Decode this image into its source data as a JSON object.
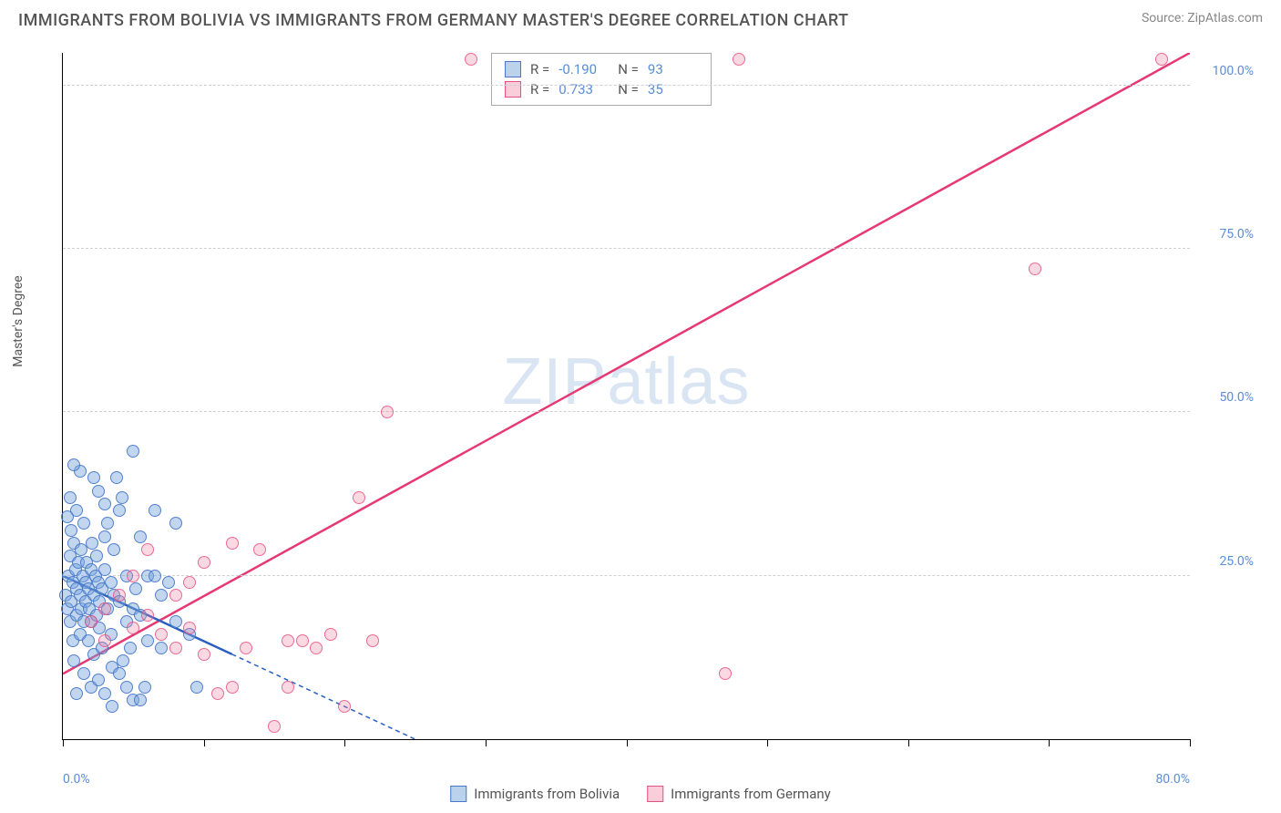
{
  "title": "IMMIGRANTS FROM BOLIVIA VS IMMIGRANTS FROM GERMANY MASTER'S DEGREE CORRELATION CHART",
  "source": "Source: ZipAtlas.com",
  "watermark": "ZIPatlas",
  "y_axis_label": "Master's Degree",
  "chart": {
    "type": "scatter",
    "xlim": [
      0,
      80
    ],
    "ylim": [
      0,
      105
    ],
    "x_tick_labels": {
      "0": "0.0%",
      "80": "80.0%"
    },
    "x_ticks": [
      0,
      10,
      20,
      30,
      40,
      50,
      60,
      70,
      80
    ],
    "y_tick_labels": {
      "25": "25.0%",
      "50": "50.0%",
      "75": "75.0%",
      "100": "100.0%"
    },
    "grid_color": "#d0d0d0",
    "background_color": "#ffffff",
    "marker_size": 14
  },
  "series": {
    "blue": {
      "label": "Immigrants from Bolivia",
      "fill": "rgba(120,165,220,0.45)",
      "stroke": "#4a78c8",
      "r_value": "-0.190",
      "n_value": "93",
      "trend": {
        "x1": 0,
        "y1": 25,
        "x2": 25,
        "y2": 0,
        "solid_until_x": 12,
        "color": "#2a5fc0"
      },
      "points": [
        [
          0.2,
          22
        ],
        [
          0.3,
          20
        ],
        [
          0.4,
          25
        ],
        [
          0.5,
          18
        ],
        [
          0.5,
          28
        ],
        [
          0.6,
          21
        ],
        [
          0.7,
          24
        ],
        [
          0.7,
          15
        ],
        [
          0.8,
          30
        ],
        [
          0.8,
          12
        ],
        [
          0.9,
          26
        ],
        [
          1.0,
          23
        ],
        [
          1.0,
          19
        ],
        [
          1.1,
          27
        ],
        [
          1.2,
          22
        ],
        [
          1.2,
          16
        ],
        [
          1.3,
          29
        ],
        [
          1.3,
          20
        ],
        [
          1.4,
          25
        ],
        [
          1.5,
          18
        ],
        [
          1.5,
          33
        ],
        [
          1.6,
          24
        ],
        [
          1.6,
          21
        ],
        [
          1.7,
          27
        ],
        [
          1.8,
          15
        ],
        [
          1.8,
          23
        ],
        [
          1.9,
          20
        ],
        [
          2.0,
          26
        ],
        [
          2.0,
          18
        ],
        [
          2.1,
          30
        ],
        [
          2.2,
          22
        ],
        [
          2.2,
          13
        ],
        [
          2.3,
          25
        ],
        [
          2.4,
          19
        ],
        [
          2.4,
          28
        ],
        [
          2.5,
          24
        ],
        [
          2.6,
          21
        ],
        [
          2.6,
          17
        ],
        [
          2.8,
          23
        ],
        [
          2.8,
          14
        ],
        [
          3.0,
          26
        ],
        [
          3.0,
          36
        ],
        [
          3.2,
          20
        ],
        [
          3.2,
          33
        ],
        [
          3.4,
          24
        ],
        [
          3.4,
          16
        ],
        [
          3.6,
          22
        ],
        [
          3.6,
          29
        ],
        [
          3.8,
          40
        ],
        [
          4.0,
          21
        ],
        [
          4.0,
          35
        ],
        [
          4.2,
          37
        ],
        [
          4.5,
          25
        ],
        [
          4.5,
          18
        ],
        [
          5.0,
          44
        ],
        [
          5.0,
          20
        ],
        [
          5.2,
          23
        ],
        [
          5.5,
          19
        ],
        [
          5.5,
          31
        ],
        [
          6.0,
          15
        ],
        [
          6.0,
          25
        ],
        [
          6.5,
          35
        ],
        [
          7.0,
          22
        ],
        [
          7.0,
          14
        ],
        [
          7.5,
          24
        ],
        [
          8.0,
          18
        ],
        [
          8.0,
          33
        ],
        [
          9.0,
          16
        ],
        [
          3.5,
          11
        ],
        [
          4.0,
          10
        ],
        [
          4.5,
          8
        ],
        [
          5.0,
          6
        ],
        [
          2.0,
          8
        ],
        [
          2.5,
          9
        ],
        [
          3.0,
          7
        ],
        [
          3.5,
          5
        ],
        [
          1.0,
          7
        ],
        [
          1.5,
          10
        ],
        [
          0.5,
          37
        ],
        [
          1.0,
          35
        ],
        [
          0.3,
          34
        ],
        [
          0.6,
          32
        ],
        [
          2.5,
          38
        ],
        [
          3.0,
          31
        ],
        [
          2.2,
          40
        ],
        [
          1.2,
          41
        ],
        [
          0.8,
          42
        ],
        [
          6.5,
          25
        ],
        [
          5.5,
          6
        ],
        [
          5.8,
          8
        ],
        [
          4.3,
          12
        ],
        [
          4.8,
          14
        ],
        [
          9.5,
          8
        ]
      ]
    },
    "pink": {
      "label": "Immigrants from Germany",
      "fill": "rgba(240,130,160,0.3)",
      "stroke": "#e65082",
      "r_value": "0.733",
      "n_value": "35",
      "trend": {
        "x1": 0,
        "y1": 10,
        "x2": 80,
        "y2": 105,
        "color": "#e63872"
      },
      "points": [
        [
          2,
          18
        ],
        [
          3,
          20
        ],
        [
          3,
          15
        ],
        [
          4,
          22
        ],
        [
          5,
          17
        ],
        [
          5,
          25
        ],
        [
          6,
          19
        ],
        [
          6,
          29
        ],
        [
          7,
          16
        ],
        [
          8,
          22
        ],
        [
          8,
          14
        ],
        [
          9,
          24
        ],
        [
          9,
          17
        ],
        [
          10,
          13
        ],
        [
          10,
          27
        ],
        [
          11,
          7
        ],
        [
          12,
          8
        ],
        [
          12,
          30
        ],
        [
          13,
          14
        ],
        [
          14,
          29
        ],
        [
          15,
          2
        ],
        [
          16,
          8
        ],
        [
          17,
          15
        ],
        [
          18,
          14
        ],
        [
          19,
          16
        ],
        [
          20,
          5
        ],
        [
          21,
          37
        ],
        [
          22,
          15
        ],
        [
          23,
          50
        ],
        [
          29,
          104
        ],
        [
          48,
          104
        ],
        [
          47,
          10
        ],
        [
          69,
          72
        ],
        [
          78,
          104
        ],
        [
          16,
          15
        ]
      ]
    }
  },
  "stats_box": {
    "r_label": "R =",
    "n_label": "N ="
  },
  "legend": {
    "blue": "Immigrants from Bolivia",
    "pink": "Immigrants from Germany"
  }
}
